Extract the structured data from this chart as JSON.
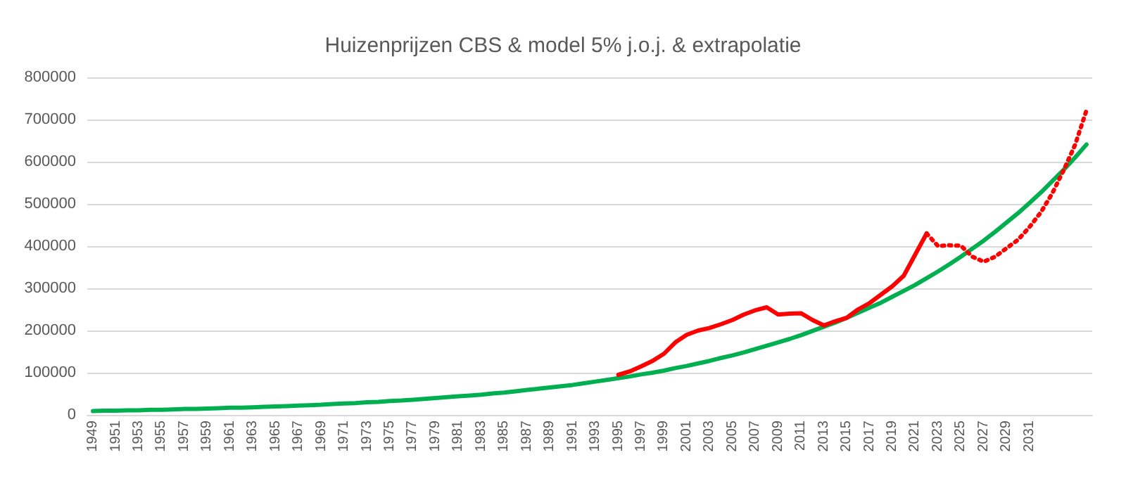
{
  "chart_data": {
    "type": "line",
    "title": "Huizenprijzen CBS & model 5% j.o.j. & extrapolatie",
    "categories": [
      "1949",
      null,
      "1951",
      null,
      "1953",
      null,
      "1955",
      null,
      "1957",
      null,
      "1959",
      null,
      "1961",
      null,
      "1963",
      null,
      "1965",
      null,
      "1967",
      null,
      "1969",
      null,
      "1971",
      null,
      "1973",
      null,
      "1975",
      null,
      "1977",
      null,
      "1979",
      null,
      "1981",
      null,
      "1983",
      null,
      "1985",
      null,
      "1987",
      null,
      "1989",
      null,
      "1991",
      null,
      "1993",
      null,
      "1995",
      null,
      "1997",
      null,
      "1999",
      null,
      "2001",
      null,
      "2003",
      null,
      "2005",
      null,
      "2007",
      null,
      "2009",
      null,
      "2011",
      null,
      "2013",
      null,
      "2015",
      null,
      "2017",
      null,
      "2019",
      null,
      "2021",
      null,
      "2023",
      null,
      "2025",
      null,
      "2027",
      null,
      "2029",
      null,
      "2031",
      null,
      null,
      null,
      null,
      null
    ],
    "series": [
      {
        "color": "#00b050",
        "line_style": "solid",
        "values": [
          9000,
          10000,
          10000,
          11000,
          11000,
          12000,
          12000,
          13000,
          14000,
          14000,
          15000,
          16000,
          17000,
          17000,
          18000,
          19000,
          20000,
          21000,
          22000,
          23000,
          24000,
          26000,
          27000,
          28000,
          30000,
          31000,
          33000,
          34000,
          36000,
          38000,
          40000,
          42000,
          44000,
          46000,
          48000,
          51000,
          53000,
          56000,
          59000,
          62000,
          65000,
          68000,
          71000,
          75000,
          79000,
          83000,
          87000,
          91000,
          96000,
          100000,
          105000,
          111000,
          116000,
          122000,
          128000,
          135000,
          141000,
          148000,
          156000,
          164000,
          172000,
          180000,
          189000,
          199000,
          209000,
          219000,
          230000,
          242000,
          254000,
          266000,
          280000,
          294000,
          308000,
          324000,
          340000,
          357000,
          375000,
          394000,
          413000,
          434000,
          456000,
          478000,
          502000,
          527000,
          554000,
          581000,
          610000,
          641000
        ]
      },
      {
        "color": "#ff0000",
        "line_style": "solid",
        "values": [
          null,
          null,
          null,
          null,
          null,
          null,
          null,
          null,
          null,
          null,
          null,
          null,
          null,
          null,
          null,
          null,
          null,
          null,
          null,
          null,
          null,
          null,
          null,
          null,
          null,
          null,
          null,
          null,
          null,
          null,
          null,
          null,
          null,
          null,
          null,
          null,
          null,
          null,
          null,
          null,
          null,
          null,
          null,
          null,
          null,
          null,
          95000,
          103000,
          115000,
          128000,
          145000,
          172000,
          190000,
          200000,
          206000,
          215000,
          225000,
          238000,
          248000,
          255000,
          238000,
          240000,
          241000,
          225000,
          212000,
          222000,
          230000,
          250000,
          265000,
          285000,
          305000,
          330000,
          380000,
          430000,
          null,
          null,
          null,
          null,
          null,
          null,
          null,
          null,
          null,
          null,
          null,
          null,
          null,
          null
        ]
      },
      {
        "color": "#ff0000",
        "line_style": "dotted",
        "values": [
          null,
          null,
          null,
          null,
          null,
          null,
          null,
          null,
          null,
          null,
          null,
          null,
          null,
          null,
          null,
          null,
          null,
          null,
          null,
          null,
          null,
          null,
          null,
          null,
          null,
          null,
          null,
          null,
          null,
          null,
          null,
          null,
          null,
          null,
          null,
          null,
          null,
          null,
          null,
          null,
          null,
          null,
          null,
          null,
          null,
          null,
          null,
          null,
          null,
          null,
          null,
          null,
          null,
          null,
          null,
          null,
          null,
          null,
          null,
          null,
          null,
          null,
          null,
          null,
          null,
          null,
          null,
          null,
          null,
          null,
          null,
          null,
          null,
          430000,
          400000,
          402000,
          401000,
          375000,
          363000,
          375000,
          395000,
          415000,
          445000,
          480000,
          525000,
          580000,
          640000,
          722000
        ]
      }
    ],
    "ylim": [
      0,
      800000
    ],
    "yticks": [
      0,
      100000,
      200000,
      300000,
      400000,
      500000,
      600000,
      700000,
      800000
    ],
    "grid": "y",
    "marker": "none"
  }
}
